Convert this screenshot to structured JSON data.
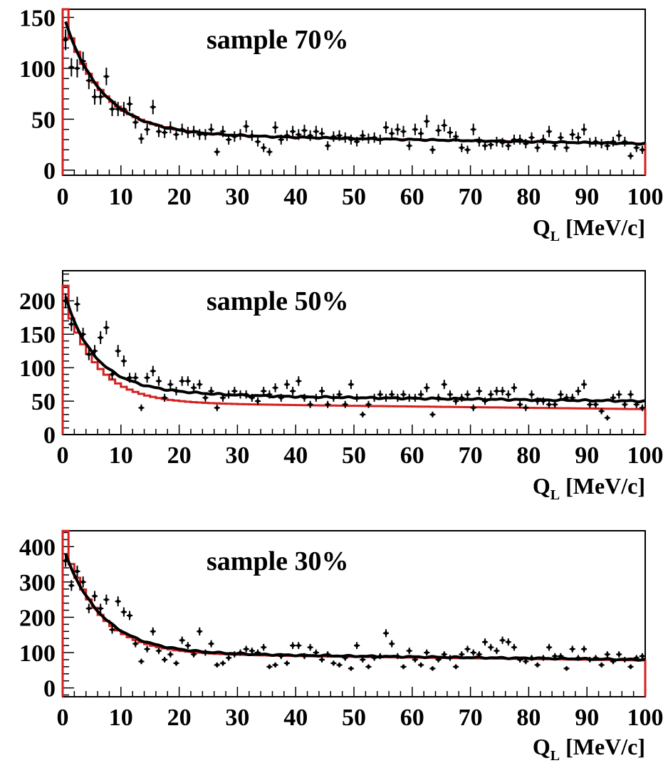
{
  "chart_data": [
    {
      "type": "line",
      "title": "sample 70%",
      "xlabel_main": "Q",
      "xlabel_sub": "L",
      "xlabel_unit": "[MeV/c]",
      "xlim": [
        0,
        100
      ],
      "ylim": [
        -5,
        158
      ],
      "xticks": [
        0,
        10,
        20,
        30,
        40,
        50,
        60,
        70,
        80,
        90,
        100
      ],
      "yticks": [
        0,
        50,
        100,
        150
      ],
      "colors": {
        "data": "#000000",
        "fit": "#000000",
        "mc": "#d42020"
      },
      "curves": {
        "black_fit": {
          "A": 118,
          "tau": 6.5,
          "B1": 36,
          "slope": -0.1,
          "C": 0
        },
        "red_hist": {
          "A": 118,
          "tau": 6.5,
          "B1": 36,
          "slope": -0.1,
          "C": 0
        }
      },
      "series": [
        {
          "kind": "points",
          "x": [
            0.5,
            1.5,
            2.5,
            3.5,
            4.5,
            5.5,
            6.5,
            7.5,
            8.5,
            9.5,
            10.5,
            11.5,
            12.5,
            13.5,
            14.5,
            15.5,
            16.5,
            17.5,
            18.5,
            19.5,
            20.5,
            21.5,
            22.5,
            23.5,
            24.5,
            25.5,
            26.5,
            27.5,
            28.5,
            29.5,
            30.5,
            31.5,
            32.5,
            33.5,
            34.5,
            35.5,
            36.5,
            37.5,
            38.5,
            39.5,
            40.5,
            41.5,
            42.5,
            43.5,
            44.5,
            45.5,
            46.5,
            47.5,
            48.5,
            49.5,
            50.5,
            51.5,
            52.5,
            53.5,
            54.5,
            55.5,
            56.5,
            57.5,
            58.5,
            59.5,
            60.5,
            61.5,
            62.5,
            63.5,
            64.5,
            65.5,
            66.5,
            67.5,
            68.5,
            69.5,
            70.5,
            71.5,
            72.5,
            73.5,
            74.5,
            75.5,
            76.5,
            77.5,
            78.5,
            79.5,
            80.5,
            81.5,
            82.5,
            83.5,
            84.5,
            85.5,
            86.5,
            87.5,
            88.5,
            89.5,
            90.5,
            91.5,
            92.5,
            93.5,
            94.5,
            95.5,
            96.5,
            97.5,
            98.5,
            99.5
          ],
          "y": [
            128,
            101,
            100,
            107,
            88,
            72,
            72,
            92,
            60,
            60,
            60,
            65,
            47,
            31,
            40,
            62,
            38,
            37,
            42,
            35,
            40,
            37,
            38,
            35,
            35,
            40,
            18,
            38,
            30,
            33,
            35,
            43,
            34,
            28,
            22,
            18,
            42,
            30,
            34,
            38,
            35,
            39,
            34,
            38,
            36,
            24,
            33,
            34,
            32,
            30,
            28,
            34,
            31,
            32,
            30,
            42,
            36,
            40,
            38,
            24,
            40,
            36,
            48,
            20,
            39,
            44,
            37,
            33,
            22,
            20,
            40,
            28,
            24,
            25,
            28,
            27,
            24,
            30,
            30,
            26,
            32,
            22,
            30,
            38,
            24,
            32,
            22,
            35,
            32,
            40,
            27,
            28,
            26,
            24,
            28,
            34,
            28,
            14,
            22,
            20
          ]
        }
      ]
    },
    {
      "type": "line",
      "title": "sample 50%",
      "xlabel_main": "Q",
      "xlabel_sub": "L",
      "xlabel_unit": "[MeV/c]",
      "xlim": [
        0,
        100
      ],
      "ylim": [
        0,
        245
      ],
      "xticks": [
        0,
        10,
        20,
        30,
        40,
        50,
        60,
        70,
        80,
        90,
        100
      ],
      "yticks": [
        0,
        50,
        100,
        150,
        200
      ],
      "colors": {
        "data": "#000000",
        "fit": "#000000",
        "mc": "#d42020"
      },
      "curves": {
        "black_fit": {
          "A": 120,
          "tau": 4.5,
          "B1": 60,
          "slope": -0.1,
          "C": 40,
          "tau2": 10
        },
        "red_hist": {
          "A": 165,
          "tau": 5.5,
          "B1": 48,
          "slope": -0.1,
          "C": 0
        }
      },
      "series": [
        {
          "kind": "points",
          "x": [
            0.5,
            1.5,
            2.5,
            3.5,
            4.5,
            5.5,
            6.5,
            7.5,
            8.5,
            9.5,
            10.5,
            11.5,
            12.5,
            13.5,
            14.5,
            15.5,
            16.5,
            17.5,
            18.5,
            19.5,
            20.5,
            21.5,
            22.5,
            23.5,
            24.5,
            25.5,
            26.5,
            27.5,
            28.5,
            29.5,
            30.5,
            31.5,
            32.5,
            33.5,
            34.5,
            35.5,
            36.5,
            37.5,
            38.5,
            39.5,
            40.5,
            41.5,
            42.5,
            43.5,
            44.5,
            45.5,
            46.5,
            47.5,
            48.5,
            49.5,
            50.5,
            51.5,
            52.5,
            53.5,
            54.5,
            55.5,
            56.5,
            57.5,
            58.5,
            59.5,
            60.5,
            61.5,
            62.5,
            63.5,
            64.5,
            65.5,
            66.5,
            67.5,
            68.5,
            69.5,
            70.5,
            71.5,
            72.5,
            73.5,
            74.5,
            75.5,
            76.5,
            77.5,
            78.5,
            79.5,
            80.5,
            81.5,
            82.5,
            83.5,
            84.5,
            85.5,
            86.5,
            87.5,
            88.5,
            89.5,
            90.5,
            91.5,
            92.5,
            93.5,
            94.5,
            95.5,
            96.5,
            97.5,
            98.5,
            99.5
          ],
          "y": [
            200,
            165,
            195,
            150,
            120,
            125,
            145,
            160,
            90,
            125,
            110,
            85,
            85,
            40,
            85,
            95,
            80,
            55,
            75,
            65,
            80,
            80,
            70,
            75,
            55,
            65,
            40,
            55,
            60,
            65,
            60,
            60,
            55,
            50,
            65,
            60,
            70,
            55,
            75,
            65,
            80,
            55,
            45,
            55,
            65,
            45,
            55,
            60,
            45,
            75,
            55,
            30,
            45,
            55,
            60,
            55,
            60,
            55,
            60,
            55,
            55,
            60,
            70,
            30,
            55,
            75,
            60,
            50,
            55,
            60,
            40,
            65,
            50,
            60,
            65,
            65,
            60,
            70,
            45,
            40,
            60,
            50,
            50,
            45,
            45,
            60,
            55,
            55,
            65,
            75,
            45,
            45,
            35,
            25,
            55,
            60,
            45,
            60,
            45,
            40
          ]
        }
      ]
    },
    {
      "type": "line",
      "title": "sample 30%",
      "xlabel_main": "Q",
      "xlabel_sub": "L",
      "xlabel_unit": "[MeV/c]",
      "xlim": [
        0,
        100
      ],
      "ylim": [
        -25,
        445
      ],
      "xticks": [
        0,
        10,
        20,
        30,
        40,
        50,
        60,
        70,
        80,
        90,
        100
      ],
      "yticks": [
        0,
        100,
        200,
        300,
        400
      ],
      "colors": {
        "data": "#000000",
        "fit": "#000000",
        "mc": "#d42020"
      },
      "curves": {
        "black_fit": {
          "A": 300,
          "tau": 6.5,
          "B1": 100,
          "slope": -0.2,
          "C": 0
        },
        "red_hist": {
          "A": 325,
          "tau": 6.0,
          "B1": 98,
          "slope": -0.2,
          "C": 0
        }
      },
      "series": [
        {
          "kind": "points",
          "x": [
            0.5,
            1.5,
            2.5,
            3.5,
            4.5,
            5.5,
            6.5,
            7.5,
            8.5,
            9.5,
            10.5,
            11.5,
            12.5,
            13.5,
            14.5,
            15.5,
            16.5,
            17.5,
            18.5,
            19.5,
            20.5,
            21.5,
            22.5,
            23.5,
            24.5,
            25.5,
            26.5,
            27.5,
            28.5,
            29.5,
            30.5,
            31.5,
            32.5,
            33.5,
            34.5,
            35.5,
            36.5,
            37.5,
            38.5,
            39.5,
            40.5,
            41.5,
            42.5,
            43.5,
            44.5,
            45.5,
            46.5,
            47.5,
            48.5,
            49.5,
            50.5,
            51.5,
            52.5,
            53.5,
            54.5,
            55.5,
            56.5,
            57.5,
            58.5,
            59.5,
            60.5,
            61.5,
            62.5,
            63.5,
            64.5,
            65.5,
            66.5,
            67.5,
            68.5,
            69.5,
            70.5,
            71.5,
            72.5,
            73.5,
            74.5,
            75.5,
            76.5,
            77.5,
            78.5,
            79.5,
            80.5,
            81.5,
            82.5,
            83.5,
            84.5,
            85.5,
            86.5,
            87.5,
            88.5,
            89.5,
            90.5,
            91.5,
            92.5,
            93.5,
            94.5,
            95.5,
            96.5,
            97.5,
            98.5,
            99.5
          ],
          "y": [
            360,
            290,
            330,
            300,
            225,
            260,
            225,
            250,
            165,
            245,
            215,
            205,
            125,
            75,
            110,
            160,
            105,
            80,
            95,
            70,
            135,
            120,
            95,
            160,
            100,
            125,
            65,
            70,
            85,
            95,
            100,
            110,
            105,
            100,
            115,
            60,
            65,
            90,
            70,
            120,
            120,
            90,
            115,
            100,
            80,
            95,
            70,
            65,
            85,
            55,
            120,
            80,
            60,
            85,
            90,
            155,
            125,
            90,
            60,
            105,
            80,
            65,
            100,
            55,
            80,
            95,
            85,
            60,
            95,
            110,
            100,
            95,
            130,
            115,
            105,
            135,
            130,
            115,
            80,
            75,
            85,
            65,
            85,
            115,
            90,
            90,
            55,
            110,
            85,
            110,
            80,
            85,
            65,
            95,
            75,
            95,
            80,
            60,
            85,
            90
          ]
        }
      ]
    }
  ]
}
